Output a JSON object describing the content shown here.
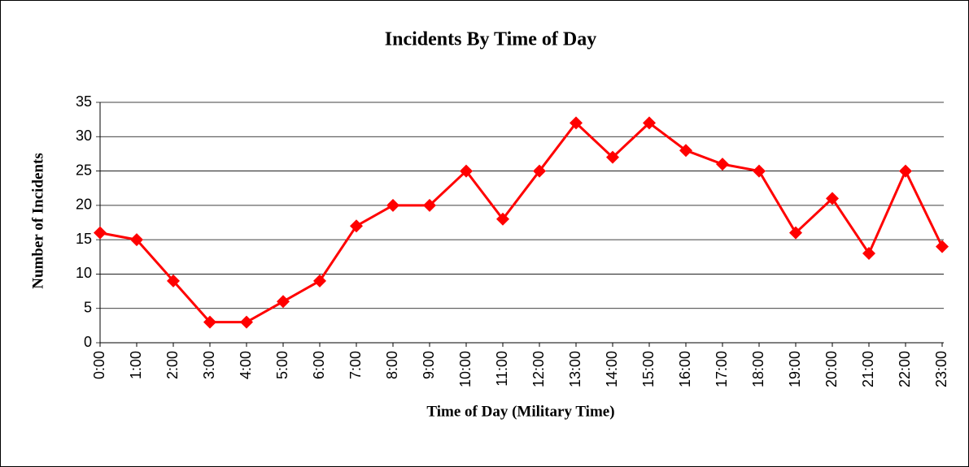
{
  "chart_data": {
    "type": "line",
    "title": "Incidents By Time of Day",
    "x_label": "Time of Day (Military Time)",
    "y_label": "Number of Incidents",
    "categories": [
      "0:00",
      "1:00",
      "2:00",
      "3:00",
      "4:00",
      "5:00",
      "6:00",
      "7:00",
      "8:00",
      "9:00",
      "10:00",
      "11:00",
      "12:00",
      "13:00",
      "14:00",
      "15:00",
      "16:00",
      "17:00",
      "18:00",
      "19:00",
      "20:00",
      "21:00",
      "22:00",
      "23:00"
    ],
    "series": [
      {
        "name": "Incidents",
        "color": "#ff0000",
        "values": [
          16,
          15,
          9,
          3,
          3,
          6,
          9,
          17,
          20,
          20,
          25,
          18,
          25,
          32,
          27,
          32,
          28,
          26,
          25,
          16,
          21,
          13,
          25,
          14
        ]
      }
    ],
    "ylim": [
      0,
      35
    ],
    "yticks": [
      0,
      5,
      10,
      15,
      20,
      25,
      30,
      35
    ],
    "grid": true
  }
}
